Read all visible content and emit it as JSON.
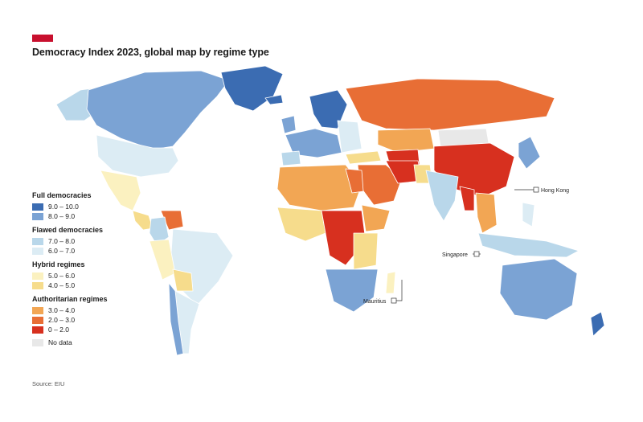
{
  "header": {
    "title": "Democracy Index 2023, global map by regime type",
    "brand_color": "#c8102e"
  },
  "legend": {
    "groups": [
      {
        "heading": "Full democracies",
        "items": [
          {
            "range": "9.0 – 10.0",
            "color": "#3b6cb2"
          },
          {
            "range": "8.0 – 9.0",
            "color": "#7ba3d4"
          }
        ]
      },
      {
        "heading": "Flawed democracies",
        "items": [
          {
            "range": "7.0 – 8.0",
            "color": "#b9d7ea"
          },
          {
            "range": "6.0 – 7.0",
            "color": "#dcecf4"
          }
        ]
      },
      {
        "heading": "Hybrid regimes",
        "items": [
          {
            "range": "5.0 – 6.0",
            "color": "#fbf1c0"
          },
          {
            "range": "4.0 – 5.0",
            "color": "#f6dc8c"
          }
        ]
      },
      {
        "heading": "Authoritarian regimes",
        "items": [
          {
            "range": "3.0 – 4.0",
            "color": "#f2a654"
          },
          {
            "range": "2.0 – 3.0",
            "color": "#e86e35"
          },
          {
            "range": "0 – 2.0",
            "color": "#d7301f"
          }
        ]
      }
    ],
    "no_data": {
      "label": "No data",
      "color": "#e8e8e8"
    }
  },
  "callouts": {
    "hong_kong": "Hong Kong",
    "singapore": "Singapore",
    "mauritius": "Mauritius"
  },
  "source": "Source: EIU"
}
